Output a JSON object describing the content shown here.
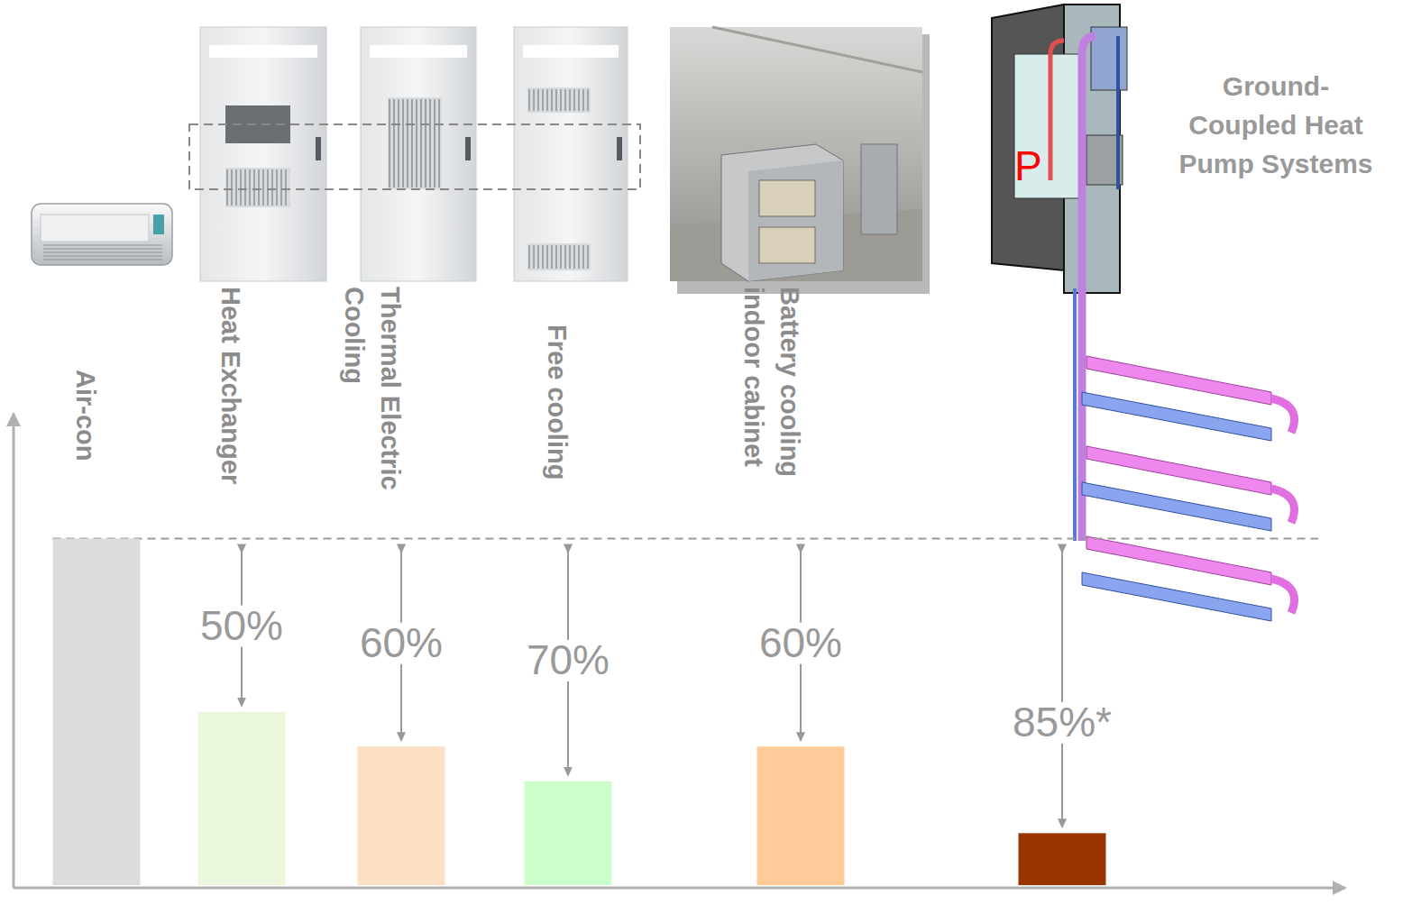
{
  "chart_data": {
    "type": "bar",
    "categories": [
      "Air-con",
      "Heat Exchanger",
      "Thermal Electric Cooling",
      "Free cooling",
      "Battery cooling indoor cabinet",
      "Ground-Coupled Heat Pump Systems"
    ],
    "values": [
      100,
      50,
      40,
      30,
      40,
      15
    ],
    "colors": [
      "#dcdcdc",
      "#ebf7dc",
      "#fde0c4",
      "#ccffcc",
      "#ffcc99",
      "#993300"
    ],
    "ylim": [
      0,
      136
    ],
    "yticks": [],
    "tick_labels": false,
    "grid": false,
    "savings": [
      null,
      50,
      60,
      70,
      60,
      85
    ],
    "savings_labels": [
      null,
      "50%",
      "60%",
      "70%",
      "60%",
      "85%*"
    ],
    "pump_label": "P"
  }
}
